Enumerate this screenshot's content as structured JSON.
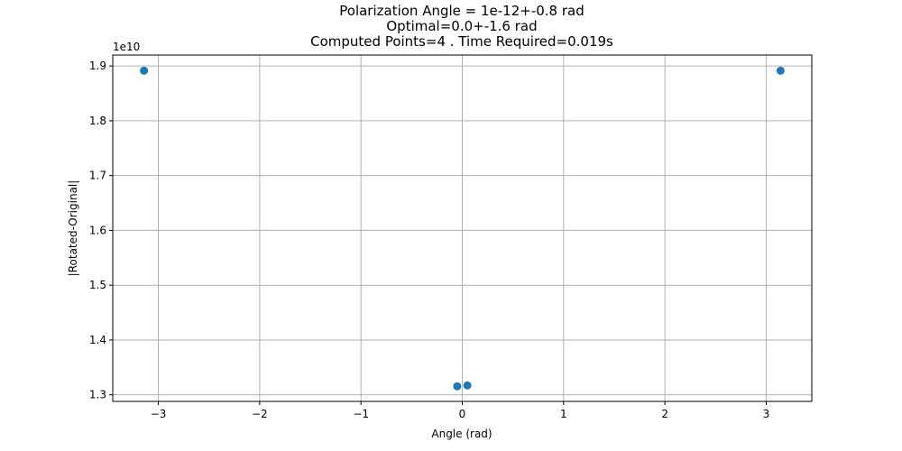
{
  "chart_data": {
    "type": "scatter",
    "title_lines": [
      "Polarization Angle = 1e-12+-0.8 rad",
      "Optimal=0.0+-1.6 rad",
      "Computed Points=4 . Time Required=0.019s"
    ],
    "xlabel": "Angle (rad)",
    "ylabel": "|Rotated-Original|",
    "y_offset_label": "1e10",
    "xlim": [
      -3.45,
      3.45
    ],
    "ylim": [
      1.288,
      1.92
    ],
    "x_ticks": [
      -3,
      -2,
      -1,
      0,
      1,
      2,
      3
    ],
    "x_tick_labels": [
      "−3",
      "−2",
      "−1",
      "0",
      "1",
      "2",
      "3"
    ],
    "y_ticks": [
      1.3,
      1.4,
      1.5,
      1.6,
      1.7,
      1.8,
      1.9
    ],
    "y_tick_labels": [
      "1.3",
      "1.4",
      "1.5",
      "1.6",
      "1.7",
      "1.8",
      "1.9"
    ],
    "grid": true,
    "marker_color": "#1f77b4",
    "points": [
      {
        "x": -3.1416,
        "y": 1.8915
      },
      {
        "x": -0.05,
        "y": 1.3155
      },
      {
        "x": 0.05,
        "y": 1.3172
      },
      {
        "x": 3.1416,
        "y": 1.8915
      }
    ]
  }
}
